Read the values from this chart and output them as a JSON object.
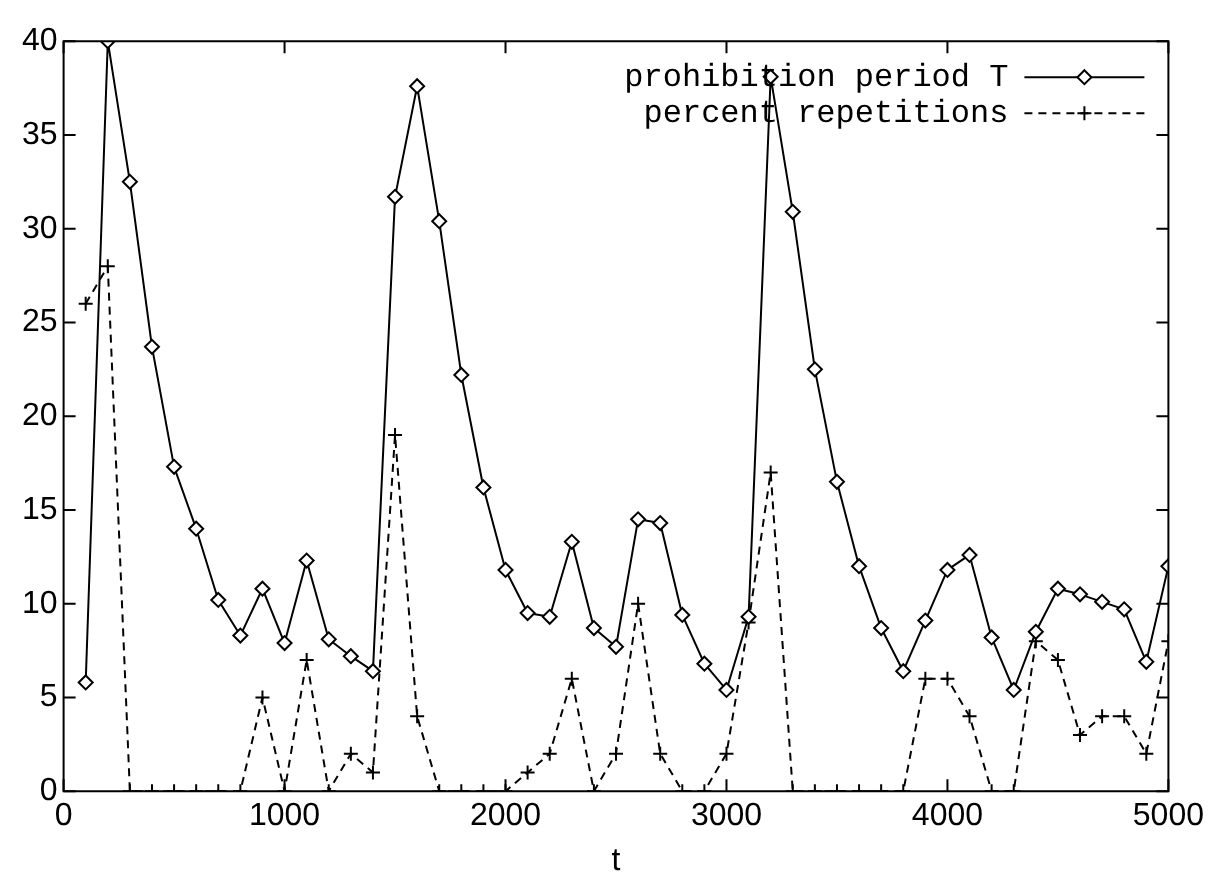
{
  "chart_data": {
    "type": "line",
    "xlabel": "t",
    "x": [
      100,
      200,
      300,
      400,
      500,
      600,
      700,
      800,
      900,
      1000,
      1100,
      1200,
      1300,
      1400,
      1500,
      1600,
      1700,
      1800,
      1900,
      2000,
      2100,
      2200,
      2300,
      2400,
      2500,
      2600,
      2700,
      2800,
      2900,
      3000,
      3100,
      3200,
      3300,
      3400,
      3500,
      3600,
      3700,
      3800,
      3900,
      4000,
      4100,
      4200,
      4300,
      4400,
      4500,
      4600,
      4700,
      4800,
      4900,
      5000
    ],
    "series": [
      {
        "name": "prohibition period T",
        "color": "#000000",
        "marker": "diamond",
        "line_style": "solid",
        "values": [
          5.8,
          40,
          32.5,
          23.7,
          17.3,
          14,
          10.2,
          8.3,
          10.8,
          7.9,
          12.3,
          8.1,
          7.2,
          6.4,
          31.7,
          37.6,
          30.4,
          22.2,
          16.2,
          11.8,
          9.5,
          9.3,
          13.3,
          8.7,
          7.7,
          14.5,
          14.3,
          9.4,
          6.8,
          5.4,
          9.3,
          38.1,
          30.9,
          22.5,
          16.5,
          12,
          8.7,
          6.4,
          9.1,
          11.8,
          12.6,
          8.2,
          5.4,
          8.5,
          10.8,
          10.5,
          10.1,
          9.7,
          6.9,
          12
        ]
      },
      {
        "name": "percent repetitions",
        "color": "#000000",
        "marker": "cross",
        "line_style": "dashed",
        "values": [
          26,
          28,
          0,
          0,
          0,
          0,
          0,
          0,
          5,
          0,
          7,
          0,
          2,
          1,
          19,
          4,
          0,
          0,
          0,
          0,
          1,
          2,
          6,
          0,
          2,
          10,
          2,
          0,
          0,
          2,
          9,
          17,
          0,
          0,
          0,
          0,
          0,
          0,
          6,
          6,
          4,
          0,
          0,
          8,
          7,
          3,
          4,
          4,
          2,
          8
        ]
      }
    ],
    "xlim": [
      0,
      5000
    ],
    "xticks": [
      0,
      1000,
      2000,
      3000,
      4000,
      5000
    ],
    "ylim": [
      0,
      40
    ],
    "yticks": [
      0,
      5,
      10,
      15,
      20,
      25,
      30,
      35,
      40
    ],
    "grid": false,
    "legend": "top right"
  }
}
